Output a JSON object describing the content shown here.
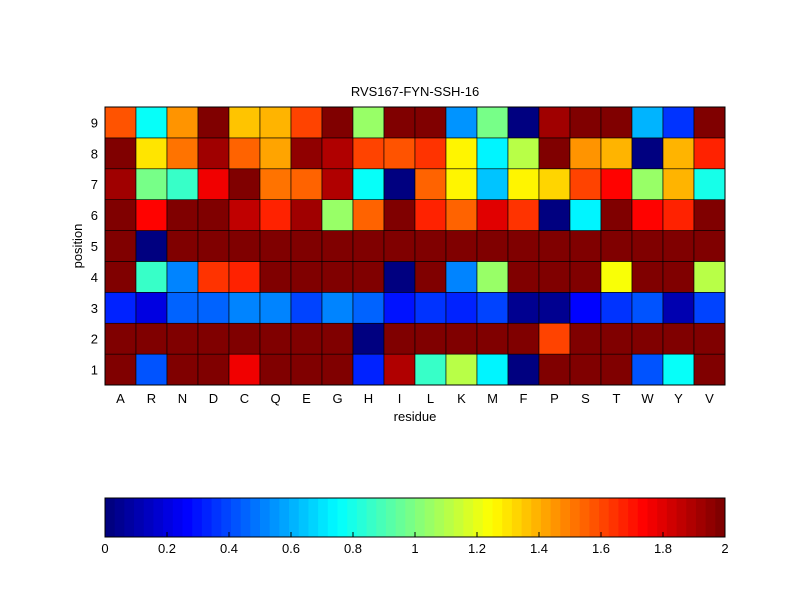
{
  "chart_data": {
    "type": "heatmap",
    "title": "RVS167-FYN-SSH-16",
    "xlabel": "residue",
    "ylabel": "position",
    "x_categories": [
      "A",
      "R",
      "N",
      "D",
      "C",
      "Q",
      "E",
      "G",
      "H",
      "I",
      "L",
      "K",
      "M",
      "F",
      "P",
      "S",
      "T",
      "W",
      "Y",
      "V"
    ],
    "y_categories": [
      "1",
      "2",
      "3",
      "4",
      "5",
      "6",
      "7",
      "8",
      "9"
    ],
    "colormap": "jet",
    "clim": [
      0,
      2
    ],
    "values_by_position": {
      "9": [
        1.58,
        0.78,
        1.45,
        2.0,
        1.37,
        1.4,
        1.62,
        2.0,
        1.05,
        2.0,
        2.0,
        0.55,
        0.98,
        0.0,
        1.93,
        2.0,
        2.0,
        0.6,
        0.35,
        2.0
      ],
      "8": [
        2.0,
        1.3,
        1.5,
        1.93,
        1.55,
        1.42,
        1.95,
        1.9,
        1.62,
        1.58,
        1.65,
        1.25,
        0.72,
        1.1,
        2.0,
        1.45,
        1.4,
        0.02,
        1.38,
        1.68
      ],
      "7": [
        1.93,
        0.98,
        0.87,
        1.78,
        2.0,
        1.52,
        1.55,
        1.9,
        0.75,
        0.02,
        1.55,
        1.25,
        0.65,
        1.25,
        1.33,
        1.62,
        1.72,
        1.05,
        1.4,
        0.8
      ],
      "6": [
        2.0,
        1.72,
        2.0,
        2.0,
        1.85,
        1.68,
        1.93,
        1.05,
        1.55,
        2.0,
        1.68,
        1.55,
        1.8,
        1.65,
        0.02,
        0.72,
        2.0,
        1.72,
        1.66,
        2.0
      ],
      "5": [
        2.0,
        0.02,
        2.0,
        2.0,
        2.0,
        2.0,
        2.0,
        2.0,
        2.0,
        2.0,
        2.0,
        2.0,
        2.0,
        2.0,
        2.0,
        2.0,
        2.0,
        2.0,
        2.0,
        2.0
      ],
      "4": [
        2.0,
        0.85,
        0.52,
        1.65,
        1.68,
        2.0,
        2.0,
        2.0,
        2.0,
        0.02,
        2.0,
        0.52,
        1.05,
        2.0,
        2.0,
        2.0,
        1.22,
        2.0,
        2.0,
        1.12
      ],
      "3": [
        0.32,
        0.2,
        0.45,
        0.45,
        0.52,
        0.52,
        0.38,
        0.53,
        0.45,
        0.3,
        0.35,
        0.32,
        0.4,
        0.05,
        0.05,
        0.25,
        0.35,
        0.42,
        0.1,
        0.38
      ],
      "2": [
        2.0,
        2.0,
        2.0,
        2.0,
        2.0,
        2.0,
        2.0,
        2.0,
        0.02,
        2.0,
        2.0,
        2.0,
        2.0,
        2.0,
        1.62,
        2.0,
        2.0,
        2.0,
        2.0,
        2.0
      ],
      "1": [
        2.0,
        0.42,
        2.0,
        2.0,
        1.75,
        2.0,
        2.0,
        2.0,
        0.32,
        1.88,
        0.85,
        1.1,
        0.74,
        0.02,
        2.0,
        2.0,
        2.0,
        0.42,
        0.76,
        2.0
      ]
    },
    "colorbar": {
      "orientation": "horizontal",
      "placement": "bottom",
      "ticks": [
        "0",
        "0.2",
        "0.4",
        "0.6",
        "0.8",
        "1",
        "1.2",
        "1.4",
        "1.6",
        "1.8",
        "2"
      ]
    },
    "grid": false
  }
}
